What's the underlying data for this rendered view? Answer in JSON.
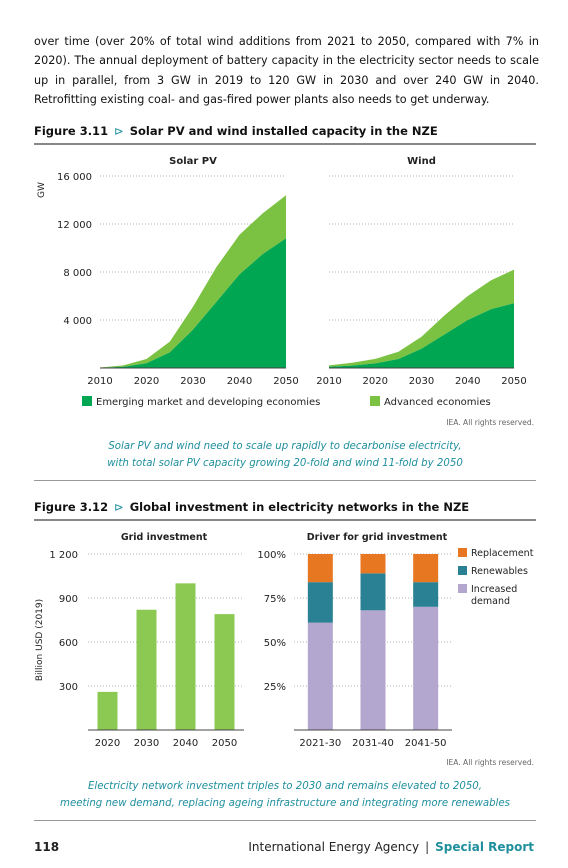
{
  "paragraph": "over time (over 20% of total wind additions from 2021 to 2050, compared with 7% in 2020). The annual deployment of battery capacity in the electricity sector needs to scale up in parallel, from 3 GW in 2019 to 120 GW in 2030 and over 240 GW in 2040. Retrofitting existing coal- and gas-fired power plants also needs to get underway.",
  "figure311": {
    "number": "Figure 3.11",
    "arrow": "⊳",
    "title": "Solar PV and wind installed capacity in the NZE",
    "rights": "IEA. All rights reserved.",
    "caption_line1": "Solar PV and wind need to scale up rapidly to decarbonise electricity,",
    "caption_line2": "with total solar PV capacity growing 20-fold and wind 11-fold by 2050"
  },
  "figure312": {
    "number": "Figure 3.12",
    "arrow": "⊳",
    "title": "Global investment in electricity networks in the NZE",
    "rights": "IEA. All rights reserved.",
    "caption_line1": "Electricity network investment triples to 2030 and remains elevated to 2050,",
    "caption_line2": "meeting new demand, replacing ageing infrastructure and integrating more renewables"
  },
  "footer": {
    "page": "118",
    "org": "International Energy Agency",
    "sep": "|",
    "series": "Special Report"
  },
  "colors": {
    "emde": "#00a651",
    "advanced": "#7cc242",
    "bar": "#8bc953",
    "replacement": "#e87722",
    "renewables": "#2a8193",
    "demand": "#b3a6cf",
    "accent": "#1f8f9d"
  },
  "chart_data": [
    {
      "type": "area",
      "title": "Solar PV",
      "ylabel": "GW",
      "ylim": [
        0,
        16000
      ],
      "yticks": [
        "16 000",
        "12 000",
        "8 000",
        "4 000"
      ],
      "yticks_values": [
        16000,
        12000,
        8000,
        4000
      ],
      "x": [
        2010,
        2015,
        2020,
        2025,
        2030,
        2035,
        2040,
        2045,
        2050
      ],
      "xticks": [
        "2010",
        "2020",
        "2030",
        "2040",
        "2050"
      ],
      "series": [
        {
          "name": "Emerging market and developing economies",
          "values": [
            20,
            100,
            400,
            1300,
            3200,
            5500,
            7800,
            9500,
            10800
          ]
        },
        {
          "name": "Advanced economies",
          "values": [
            20,
            120,
            350,
            900,
            1900,
            2900,
            3300,
            3400,
            3600
          ]
        }
      ]
    },
    {
      "type": "area",
      "title": "Wind",
      "ylim": [
        0,
        16000
      ],
      "x": [
        2010,
        2015,
        2020,
        2025,
        2030,
        2035,
        2040,
        2045,
        2050
      ],
      "xticks": [
        "2010",
        "2020",
        "2030",
        "2040",
        "2050"
      ],
      "series": [
        {
          "name": "Emerging market and developing economies",
          "values": [
            100,
            200,
            380,
            750,
            1600,
            2800,
            4000,
            4900,
            5400
          ]
        },
        {
          "name": "Advanced economies",
          "values": [
            120,
            230,
            380,
            600,
            1000,
            1600,
            2000,
            2400,
            2800
          ]
        }
      ],
      "legend": [
        "Emerging market and developing economies",
        "Advanced economies"
      ]
    },
    {
      "type": "bar",
      "title": "Grid investment",
      "ylabel": "Billion USD (2019)",
      "ylim": [
        0,
        1200
      ],
      "yticks": [
        "1 200",
        "900",
        "600",
        "300"
      ],
      "yticks_values": [
        1200,
        900,
        600,
        300
      ],
      "categories": [
        "2020",
        "2030",
        "2040",
        "2050"
      ],
      "values": [
        260,
        820,
        1000,
        790
      ]
    },
    {
      "type": "bar",
      "stacked": true,
      "title": "Driver for grid investment",
      "ylim": [
        0,
        100
      ],
      "yticks": [
        "100%",
        "75%",
        "50%",
        "25%"
      ],
      "yticks_values": [
        100,
        75,
        50,
        25
      ],
      "categories": [
        "2021-30",
        "2031-40",
        "2041-50"
      ],
      "series": [
        {
          "name": "Increased demand",
          "values": [
            61,
            68,
            70
          ]
        },
        {
          "name": "Renewables",
          "values": [
            23,
            21,
            14
          ]
        },
        {
          "name": "Replacement",
          "values": [
            16,
            11,
            16
          ]
        }
      ],
      "legend": [
        "Replacement",
        "Renewables",
        "Increased",
        "demand"
      ]
    }
  ]
}
